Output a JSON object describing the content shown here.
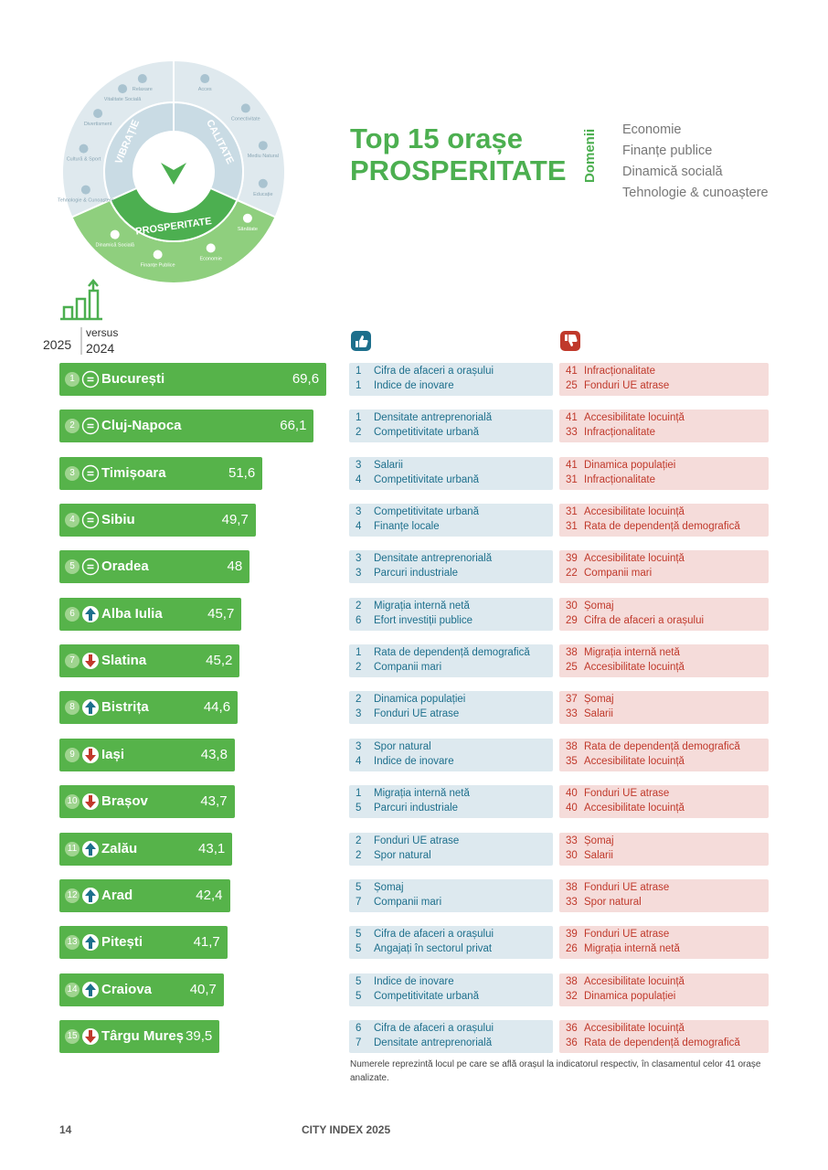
{
  "wheel": {
    "sectors": [
      "VIBRAȚIE",
      "CALITATE",
      "PROSPERITATE"
    ],
    "items": [
      "Relaxare",
      "Acces",
      "Conectivitate",
      "Mediu Natural",
      "Educație",
      "Sănătate",
      "Economie",
      "Finanțe Publice",
      "Dinamică Socială",
      "Tehnologie & Cunoaștere",
      "Cultură & Sport",
      "Divertisment",
      "Vitalitate Socială"
    ]
  },
  "title_line1": "Top 15 orașe",
  "title_line2": "PROSPERITATE",
  "domains_label": "Domenii",
  "domains": [
    "Economie",
    "Finanțe publice",
    "Dinamică socială",
    "Tehnologie & cunoaștere"
  ],
  "legend": {
    "current": "2025",
    "versus": "versus",
    "previous": "2024"
  },
  "rows": [
    {
      "rank": 1,
      "trend": "equal",
      "city": "București",
      "score": 69.6,
      "score_label": "69,6",
      "strengths": [
        {
          "rank": 1,
          "name": "Cifra de afaceri a orașului"
        },
        {
          "rank": 1,
          "name": "Indice de inovare"
        }
      ],
      "weaknesses": [
        {
          "rank": 41,
          "name": "Infracționalitate"
        },
        {
          "rank": 25,
          "name": "Fonduri UE atrase"
        }
      ]
    },
    {
      "rank": 2,
      "trend": "equal",
      "city": "Cluj-Napoca",
      "score": 66.1,
      "score_label": "66,1",
      "strengths": [
        {
          "rank": 1,
          "name": "Densitate antreprenorială"
        },
        {
          "rank": 2,
          "name": "Competitivitate urbană"
        }
      ],
      "weaknesses": [
        {
          "rank": 41,
          "name": "Accesibilitate locuință"
        },
        {
          "rank": 33,
          "name": "Infracționalitate"
        }
      ]
    },
    {
      "rank": 3,
      "trend": "equal",
      "city": "Timișoara",
      "score": 51.6,
      "score_label": "51,6",
      "strengths": [
        {
          "rank": 3,
          "name": "Salarii"
        },
        {
          "rank": 4,
          "name": "Competitivitate urbană"
        }
      ],
      "weaknesses": [
        {
          "rank": 41,
          "name": "Dinamica populației"
        },
        {
          "rank": 31,
          "name": "Infracționalitate"
        }
      ]
    },
    {
      "rank": 4,
      "trend": "equal",
      "city": "Sibiu",
      "score": 49.7,
      "score_label": "49,7",
      "strengths": [
        {
          "rank": 3,
          "name": "Competitivitate urbană"
        },
        {
          "rank": 4,
          "name": "Finanțe locale"
        }
      ],
      "weaknesses": [
        {
          "rank": 31,
          "name": "Accesibilitate locuință"
        },
        {
          "rank": 31,
          "name": "Rata de dependență demografică"
        }
      ]
    },
    {
      "rank": 5,
      "trend": "equal",
      "city": "Oradea",
      "score": 48,
      "strengths": [
        {
          "rank": 3,
          "name": "Densitate antreprenorială"
        },
        {
          "rank": 3,
          "name": "Parcuri industriale"
        }
      ],
      "weaknesses": [
        {
          "rank": 39,
          "name": "Accesibilitate locuință"
        },
        {
          "rank": 22,
          "name": "Companii mari"
        }
      ]
    },
    {
      "rank": 6,
      "trend": "up",
      "city": "Alba Iulia",
      "score": 45.7,
      "score_label": "45,7",
      "strengths": [
        {
          "rank": 2,
          "name": "Migrația internă netă"
        },
        {
          "rank": 6,
          "name": "Efort investiții publice"
        }
      ],
      "weaknesses": [
        {
          "rank": 30,
          "name": "Șomaj"
        },
        {
          "rank": 29,
          "name": "Cifra de afaceri a orașului"
        }
      ]
    },
    {
      "rank": 7,
      "trend": "down",
      "city": "Slatina",
      "score": 45.2,
      "score_label": "45,2",
      "strengths": [
        {
          "rank": 1,
          "name": "Rata de dependență demografică"
        },
        {
          "rank": 2,
          "name": "Companii mari"
        }
      ],
      "weaknesses": [
        {
          "rank": 38,
          "name": "Migrația internă netă"
        },
        {
          "rank": 25,
          "name": "Accesibilitate locuință"
        }
      ]
    },
    {
      "rank": 8,
      "trend": "up",
      "city": "Bistrița",
      "score": 44.6,
      "score_label": "44,6",
      "strengths": [
        {
          "rank": 2,
          "name": "Dinamica populației"
        },
        {
          "rank": 3,
          "name": "Fonduri UE atrase"
        }
      ],
      "weaknesses": [
        {
          "rank": 37,
          "name": "Șomaj"
        },
        {
          "rank": 33,
          "name": "Salarii"
        }
      ]
    },
    {
      "rank": 9,
      "trend": "down",
      "city": "Iași",
      "score": 43.8,
      "score_label": "43,8",
      "strengths": [
        {
          "rank": 3,
          "name": "Spor natural"
        },
        {
          "rank": 4,
          "name": "Indice de inovare"
        }
      ],
      "weaknesses": [
        {
          "rank": 38,
          "name": "Rata de dependență demografică"
        },
        {
          "rank": 35,
          "name": "Accesibilitate locuință"
        }
      ]
    },
    {
      "rank": 10,
      "trend": "down",
      "city": "Brașov",
      "score": 43.7,
      "score_label": "43,7",
      "strengths": [
        {
          "rank": 1,
          "name": "Migrația internă netă"
        },
        {
          "rank": 5,
          "name": "Parcuri industriale"
        }
      ],
      "weaknesses": [
        {
          "rank": 40,
          "name": "Fonduri UE atrase"
        },
        {
          "rank": 40,
          "name": "Accesibilitate locuință"
        }
      ]
    },
    {
      "rank": 11,
      "trend": "up",
      "city": "Zalău",
      "score": 43.1,
      "score_label": "43,1",
      "strengths": [
        {
          "rank": 2,
          "name": "Fonduri UE atrase"
        },
        {
          "rank": 2,
          "name": "Spor natural"
        }
      ],
      "weaknesses": [
        {
          "rank": 33,
          "name": "Șomaj"
        },
        {
          "rank": 30,
          "name": "Salarii"
        }
      ]
    },
    {
      "rank": 12,
      "trend": "up",
      "city": "Arad",
      "score": 42.4,
      "score_label": "42,4",
      "strengths": [
        {
          "rank": 5,
          "name": "Șomaj"
        },
        {
          "rank": 7,
          "name": "Companii mari"
        }
      ],
      "weaknesses": [
        {
          "rank": 38,
          "name": "Fonduri UE atrase"
        },
        {
          "rank": 33,
          "name": "Spor natural"
        }
      ]
    },
    {
      "rank": 13,
      "trend": "up",
      "city": "Pitești",
      "score": 41.7,
      "score_label": "41,7",
      "strengths": [
        {
          "rank": 5,
          "name": "Cifra de afaceri a orașului"
        },
        {
          "rank": 5,
          "name": "Angajați în sectorul privat"
        }
      ],
      "weaknesses": [
        {
          "rank": 39,
          "name": "Fonduri UE atrase"
        },
        {
          "rank": 26,
          "name": "Migrația internă netă"
        }
      ]
    },
    {
      "rank": 14,
      "trend": "up",
      "city": "Craiova",
      "score": 40.7,
      "score_label": "40,7",
      "strengths": [
        {
          "rank": 5,
          "name": "Indice de inovare"
        },
        {
          "rank": 5,
          "name": "Competitivitate urbană"
        }
      ],
      "weaknesses": [
        {
          "rank": 38,
          "name": "Accesibilitate locuință"
        },
        {
          "rank": 32,
          "name": "Dinamica populației"
        }
      ]
    },
    {
      "rank": 15,
      "trend": "down",
      "city": "Târgu Mureș",
      "score": 39.5,
      "score_label": "39,5",
      "strengths": [
        {
          "rank": 6,
          "name": "Cifra de afaceri a orașului"
        },
        {
          "rank": 7,
          "name": "Densitate antreprenorială"
        }
      ],
      "weaknesses": [
        {
          "rank": 36,
          "name": "Accesibilitate locuință"
        },
        {
          "rank": 36,
          "name": "Rata de dependență demografică"
        }
      ]
    }
  ],
  "footnote": "Numerele reprezintă locul pe care se află orașul la indicatorul respectiv, în clasamentul celor 41 orașe analizate.",
  "footer": {
    "page": "14",
    "title": "CITY INDEX 2025"
  }
}
